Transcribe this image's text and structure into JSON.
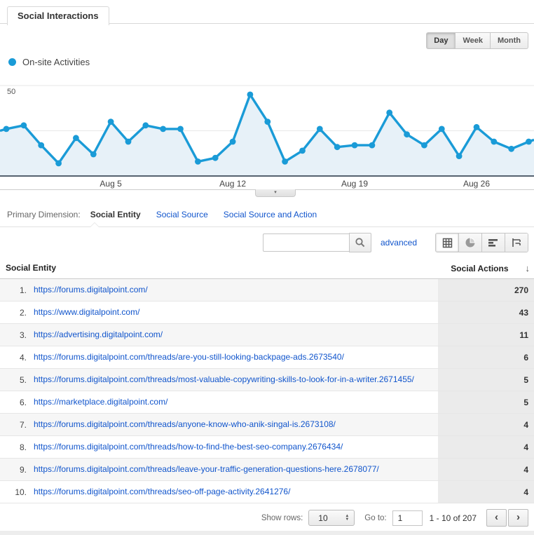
{
  "tab": {
    "label": "Social Interactions"
  },
  "granularity": {
    "options": [
      "Day",
      "Week",
      "Month"
    ],
    "selected": "Day"
  },
  "legend": {
    "label": "On-site Activities",
    "color": "#1a9bd7"
  },
  "chart_data": {
    "type": "line",
    "title": "",
    "xlabel": "",
    "ylabel": "",
    "ylim": [
      0,
      50
    ],
    "y_ticks": [
      25,
      50
    ],
    "grid": true,
    "area_fill": true,
    "legend_position": "top-left",
    "x_tick_labels": [
      "Aug 5",
      "Aug 12",
      "Aug 19",
      "Aug 26"
    ],
    "x_tick_indices": [
      6,
      13,
      20,
      27
    ],
    "series": [
      {
        "name": "On-site Activities",
        "color": "#1a9bd7",
        "fill_color": "#e7f1f8",
        "values": [
          26,
          28,
          17,
          7,
          21,
          12,
          30,
          19,
          28,
          26,
          26,
          8,
          10,
          19,
          45,
          30,
          8,
          14,
          26,
          16,
          17,
          17,
          35,
          23,
          17,
          26,
          11,
          27,
          19,
          15,
          19
        ]
      }
    ],
    "edge_start_value": 25,
    "edge_end_value": 20
  },
  "primary_dimension": {
    "label": "Primary Dimension:",
    "selected": "Social Entity",
    "links": [
      "Social Source",
      "Social Source and Action"
    ]
  },
  "toolbar": {
    "search_value": "",
    "advanced_label": "advanced",
    "views": [
      "table",
      "percentage",
      "performance",
      "pivot"
    ],
    "active_view": "table"
  },
  "table": {
    "headers": {
      "dimension": "Social Entity",
      "metric": "Social Actions"
    },
    "sort": "descending",
    "rows": [
      {
        "rank": "1.",
        "url": "https://forums.digitalpoint.com/",
        "value": "270"
      },
      {
        "rank": "2.",
        "url": "https://www.digitalpoint.com/",
        "value": "43"
      },
      {
        "rank": "3.",
        "url": "https://advertising.digitalpoint.com/",
        "value": "11"
      },
      {
        "rank": "4.",
        "url": "https://forums.digitalpoint.com/threads/are-you-still-looking-backpage-ads.2673540/",
        "value": "6"
      },
      {
        "rank": "5.",
        "url": "https://forums.digitalpoint.com/threads/most-valuable-copywriting-skills-to-look-for-in-a-writer.2671455/",
        "value": "5"
      },
      {
        "rank": "6.",
        "url": "https://marketplace.digitalpoint.com/",
        "value": "5"
      },
      {
        "rank": "7.",
        "url": "https://forums.digitalpoint.com/threads/anyone-know-who-anik-singal-is.2673108/",
        "value": "4"
      },
      {
        "rank": "8.",
        "url": "https://forums.digitalpoint.com/threads/how-to-find-the-best-seo-company.2676434/",
        "value": "4"
      },
      {
        "rank": "9.",
        "url": "https://forums.digitalpoint.com/threads/leave-your-traffic-generation-questions-here.2678077/",
        "value": "4"
      },
      {
        "rank": "10.",
        "url": "https://forums.digitalpoint.com/threads/seo-off-page-activity.2641276/",
        "value": "4"
      }
    ]
  },
  "pagination": {
    "show_rows_label": "Show rows:",
    "rows_value": "10",
    "goto_label": "Go to:",
    "goto_value": "1",
    "range_label": "1 - 10 of 207"
  },
  "icons": {
    "sort_desc": "↓",
    "collapse": "▾",
    "step_up": "▲",
    "step_down": "▼",
    "prev": "‹",
    "next": "›"
  }
}
